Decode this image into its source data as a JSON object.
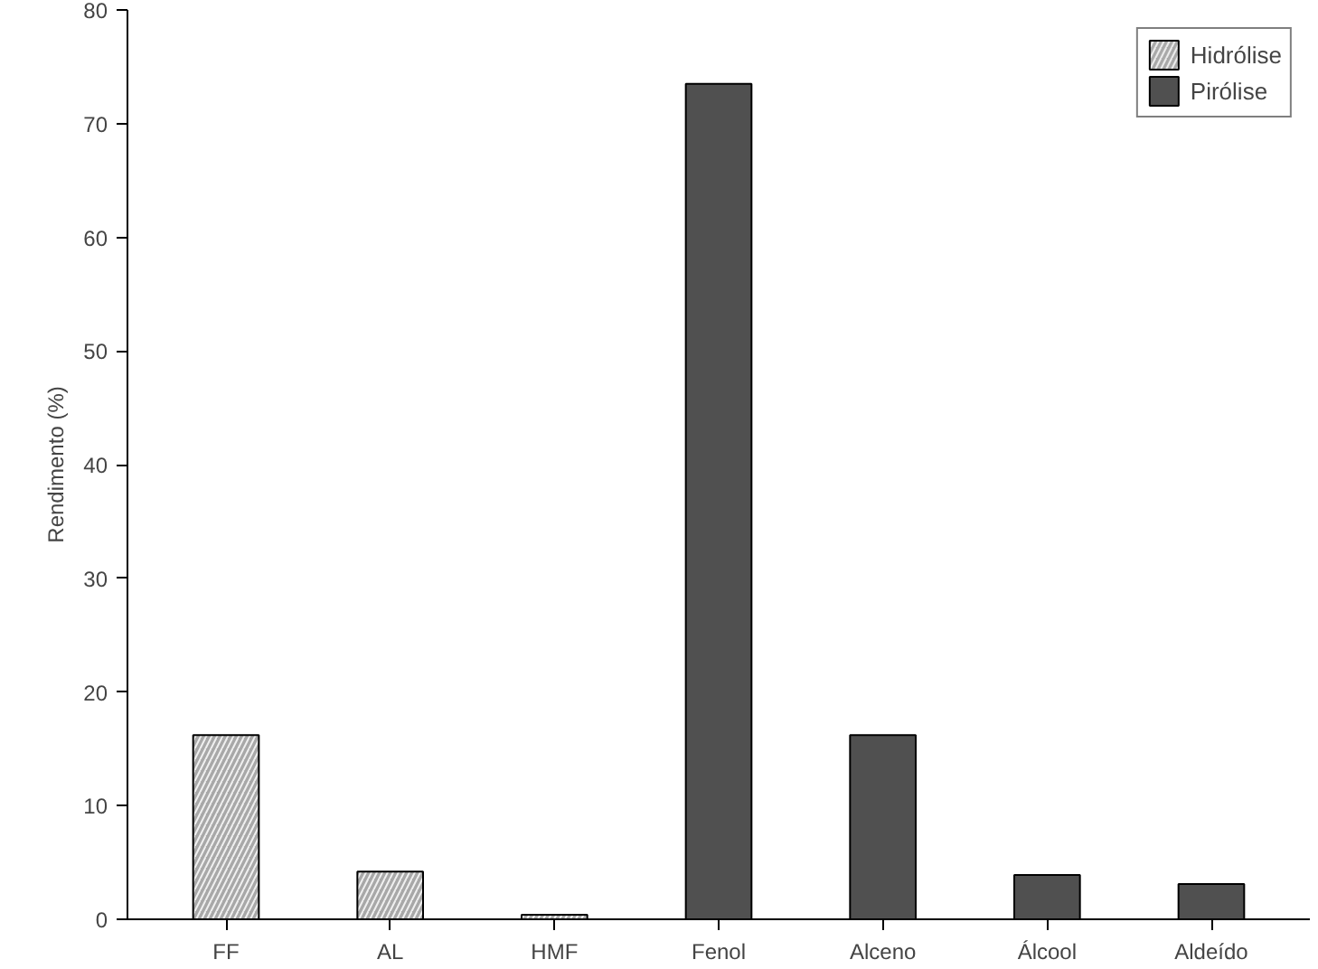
{
  "chart_data": {
    "type": "bar",
    "ylabel": "Rendimento (%)",
    "categories": [
      "FF",
      "AL",
      "HMF",
      "Fenol",
      "Alceno",
      "Álcool",
      "Aldeído"
    ],
    "series": [
      {
        "name": "Hidrólise",
        "color": "#a8a8a8",
        "values": [
          16.2,
          4.2,
          0.4,
          null,
          null,
          null,
          null
        ]
      },
      {
        "name": "Pirólise",
        "color": "#505050",
        "values": [
          null,
          null,
          null,
          73.5,
          16.2,
          3.9,
          3.1
        ]
      }
    ],
    "ylim": [
      0,
      80
    ],
    "yticks": [
      0,
      10,
      20,
      30,
      40,
      50,
      60,
      70,
      80
    ],
    "grid": false,
    "legend": "top right"
  }
}
